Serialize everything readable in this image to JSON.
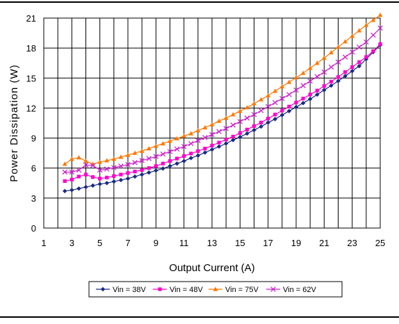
{
  "chart_data": {
    "type": "line",
    "title": "",
    "xlabel": "Output Current (A)",
    "ylabel": "Power Dissipation (W)",
    "xlim": [
      1,
      25
    ],
    "ylim": [
      0,
      21
    ],
    "x_ticks": [
      "1",
      "3",
      "5",
      "7",
      "9",
      "11",
      "13",
      "15",
      "17",
      "19",
      "21",
      "23",
      "25"
    ],
    "y_ticks": [
      "0",
      "3",
      "6",
      "9",
      "12",
      "15",
      "18",
      "21"
    ],
    "grid": true,
    "legend_position": "bottom",
    "x": [
      2.5,
      3.0,
      3.5,
      4.0,
      4.5,
      5.0,
      5.5,
      6.0,
      6.5,
      7.0,
      7.5,
      8.0,
      8.5,
      9.0,
      9.5,
      10.0,
      10.5,
      11.0,
      11.5,
      12.0,
      12.5,
      13.0,
      13.5,
      14.0,
      14.5,
      15.0,
      15.5,
      16.0,
      16.5,
      17.0,
      17.5,
      18.0,
      18.5,
      19.0,
      19.5,
      20.0,
      20.5,
      21.0,
      21.5,
      22.0,
      22.5,
      23.0,
      23.5,
      24.0,
      24.5,
      25.0
    ],
    "series": [
      {
        "name": "Vin = 38V",
        "color": "#1a2a80",
        "marker": "diamond",
        "values": [
          3.7,
          3.8,
          3.95,
          4.1,
          4.25,
          4.4,
          4.5,
          4.65,
          4.8,
          4.95,
          5.15,
          5.35,
          5.55,
          5.75,
          5.95,
          6.2,
          6.45,
          6.7,
          7.0,
          7.25,
          7.55,
          7.85,
          8.15,
          8.45,
          8.8,
          9.1,
          9.45,
          9.8,
          10.15,
          10.55,
          10.9,
          11.3,
          11.7,
          12.1,
          12.5,
          12.9,
          13.35,
          13.8,
          14.25,
          14.7,
          15.2,
          15.7,
          16.2,
          16.9,
          17.6,
          18.3
        ]
      },
      {
        "name": "Vin = 48V",
        "color": "#ff00cc",
        "marker": "square",
        "values": [
          4.7,
          4.85,
          5.15,
          5.35,
          5.1,
          4.95,
          5.05,
          5.2,
          5.35,
          5.5,
          5.65,
          5.8,
          6.0,
          6.2,
          6.45,
          6.7,
          6.95,
          7.2,
          7.45,
          7.7,
          7.95,
          8.25,
          8.55,
          8.85,
          9.15,
          9.5,
          9.85,
          10.2,
          10.55,
          10.95,
          11.35,
          11.75,
          12.15,
          12.55,
          12.95,
          13.35,
          13.75,
          14.2,
          14.65,
          15.1,
          15.6,
          16.1,
          16.6,
          17.1,
          17.7,
          18.4
        ]
      },
      {
        "name": "Vin = 75V",
        "color": "#ff7700",
        "marker": "triangle",
        "values": [
          6.4,
          6.9,
          7.05,
          6.7,
          6.4,
          6.6,
          6.75,
          6.9,
          7.1,
          7.3,
          7.5,
          7.7,
          7.95,
          8.2,
          8.45,
          8.7,
          8.95,
          9.2,
          9.45,
          9.75,
          10.05,
          10.35,
          10.7,
          11.0,
          11.35,
          11.7,
          12.05,
          12.45,
          12.85,
          13.25,
          13.7,
          14.15,
          14.6,
          15.05,
          15.5,
          16.0,
          16.5,
          17.0,
          17.55,
          18.1,
          18.65,
          19.2,
          19.75,
          20.3,
          20.8,
          21.3
        ]
      },
      {
        "name": "Vin = 62V",
        "color": "#cc22cc",
        "marker": "x",
        "values": [
          5.6,
          5.6,
          5.8,
          6.3,
          6.25,
          5.8,
          5.9,
          6.05,
          6.2,
          6.35,
          6.55,
          6.75,
          6.95,
          7.15,
          7.4,
          7.65,
          7.9,
          8.15,
          8.45,
          8.75,
          9.05,
          9.35,
          9.65,
          9.95,
          10.3,
          10.65,
          11.0,
          11.35,
          11.75,
          12.15,
          12.55,
          12.95,
          13.35,
          13.8,
          14.25,
          14.7,
          15.15,
          15.6,
          16.1,
          16.6,
          17.1,
          17.6,
          18.1,
          18.6,
          19.3,
          20.0
        ]
      }
    ]
  }
}
